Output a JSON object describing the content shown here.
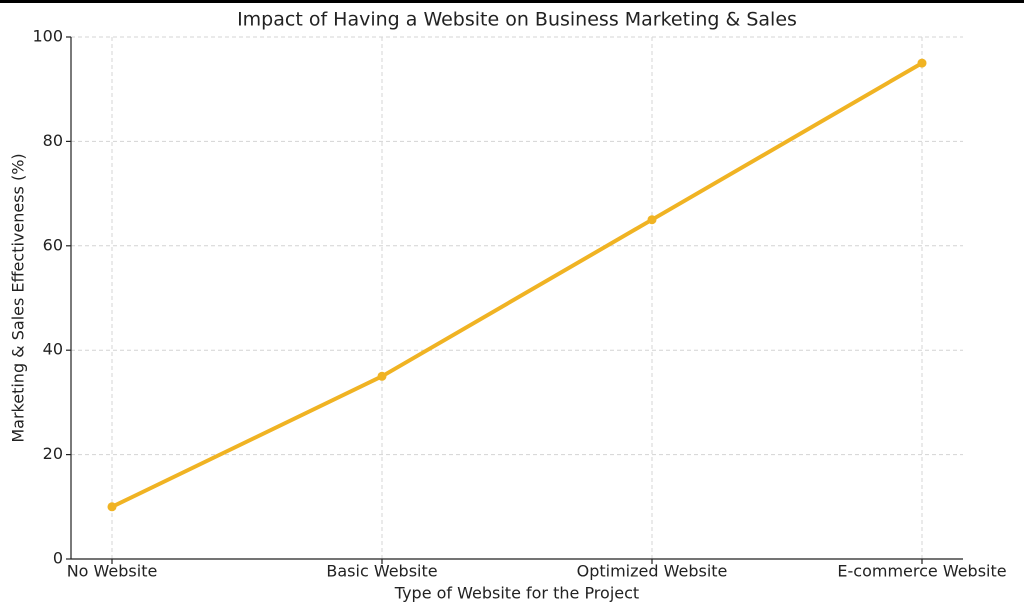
{
  "chart_data": {
    "type": "line",
    "title": "Impact of Having a Website on Business Marketing & Sales",
    "x_label": "Type of Website for the Project",
    "y_label": "Marketing & Sales Effectiveness (%)",
    "categories": [
      "No Website",
      "Basic Website",
      "Optimized Website",
      "E-commerce Website"
    ],
    "values": [
      10,
      35,
      65,
      95
    ],
    "color": "#f0b323",
    "ylim": [
      0,
      100
    ],
    "yticks": [
      0,
      20,
      40,
      60,
      80,
      100
    ],
    "grid": true
  }
}
